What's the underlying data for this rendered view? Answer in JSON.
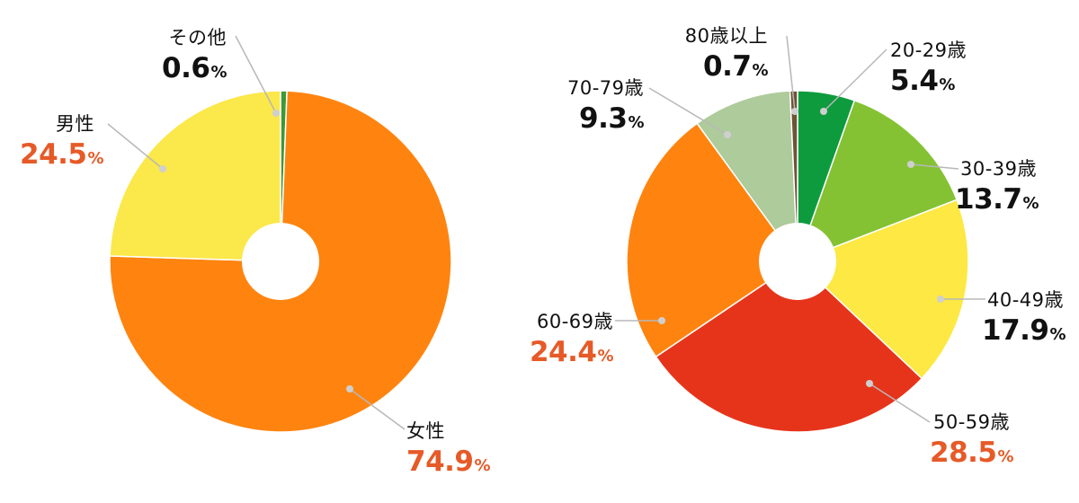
{
  "chart_data": [
    {
      "type": "pie",
      "categories": [
        "その他",
        "女性",
        "男性"
      ],
      "values": [
        0.6,
        74.9,
        24.5
      ],
      "unit": "%",
      "colors": [
        "#3a9a37",
        "#fe840f",
        "#fbe84a"
      ],
      "value_colors": [
        "#111111",
        "#e65a28",
        "#e65a28"
      ]
    },
    {
      "type": "pie",
      "categories": [
        "20-29歳",
        "30-39歳",
        "40-49歳",
        "50-59歳",
        "60-69歳",
        "70-79歳",
        "80歳以上"
      ],
      "values": [
        5.4,
        13.7,
        17.9,
        28.5,
        24.4,
        9.3,
        0.7
      ],
      "unit": "%",
      "colors": [
        "#0e9b3e",
        "#84c233",
        "#fde844",
        "#e6341b",
        "#fe840f",
        "#aecb9b",
        "#6e5335"
      ],
      "value_colors": [
        "#111111",
        "#111111",
        "#111111",
        "#e65a28",
        "#e65a28",
        "#111111",
        "#111111"
      ]
    }
  ],
  "percent_sign": "%"
}
